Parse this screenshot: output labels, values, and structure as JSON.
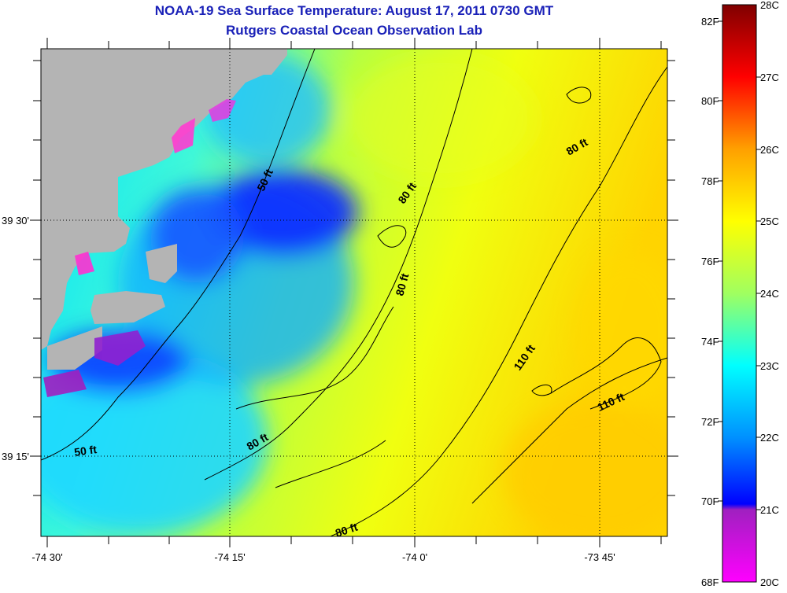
{
  "title": {
    "line1": "NOAA-19 Sea Surface Temperature:  August 17, 2011 0730 GMT",
    "line2": "Rutgers Coastal Ocean Observation Lab"
  },
  "axes": {
    "longitude_labels": [
      "-74 30'",
      "-74 15'",
      "-74 0'",
      "-73 45'"
    ],
    "latitude_labels": [
      "39 30'",
      "39 15'"
    ],
    "grid": "dotted"
  },
  "contour_labels": [
    "50 ft",
    "80 ft",
    "80 ft",
    "80 ft",
    "110 ft",
    "110 ft",
    "50 ft",
    "80 ft",
    "80 ft"
  ],
  "colorbar": {
    "fahrenheit_labels": [
      "82F",
      "80F",
      "78F",
      "76F",
      "74F",
      "72F",
      "70F",
      "68F"
    ],
    "celsius_labels": [
      "28C",
      "27C",
      "26C",
      "25C",
      "24C",
      "23C",
      "22C",
      "21C",
      "20C"
    ],
    "stops": [
      "#ff00ff",
      "#a020c0",
      "#0000ff",
      "#0090ff",
      "#00ffff",
      "#a0ff60",
      "#ffff00",
      "#ffa000",
      "#ff0000",
      "#800000"
    ]
  },
  "colors": {
    "land": "#b4b4b4",
    "warm_water": "#ffe600",
    "mid_water": "#80ff60",
    "cool_water": "#00d8ff",
    "cold_water": "#0028ff",
    "title_text": "#1a21b8"
  }
}
